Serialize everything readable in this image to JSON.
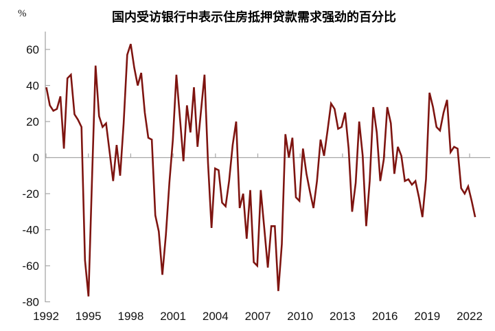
{
  "header": {
    "title": "国内受访银行中表示住房抵押贷款需求强劲的百分比",
    "y_unit_label": "%"
  },
  "chart_data": {
    "type": "line",
    "title": "国内受访银行中表示住房抵押贷款需求强劲的百分比",
    "ylabel": "%",
    "xlabel": "",
    "frequency": "quarterly",
    "start_period": "1992Q1",
    "end_period": "2022Q3",
    "grid": false,
    "legend": "none",
    "ylim": [
      -80,
      65
    ],
    "y_tick_values": [
      60,
      40,
      20,
      0,
      -20,
      -40,
      -60,
      -80
    ],
    "x_tick_labels": [
      "1992",
      "1995",
      "1998",
      "2001",
      "2004",
      "2007",
      "2010",
      "2013",
      "2016",
      "2019",
      "2022"
    ],
    "line_color": "#7E1410",
    "axis_color": "#A6A6A6",
    "label_color": "#111111",
    "values": [
      39,
      29,
      26,
      27,
      34,
      5,
      44,
      46,
      24,
      21,
      17,
      -57,
      -77,
      -11,
      51,
      23,
      17,
      19,
      3,
      -13,
      7,
      -10,
      19,
      57,
      63,
      50,
      40,
      47,
      25,
      11,
      10,
      -32,
      -41,
      -65,
      -43,
      -14,
      10,
      46,
      22,
      -2,
      29,
      14,
      39,
      6,
      26,
      46,
      -3,
      -39,
      -6,
      -7,
      -25,
      -27,
      -13,
      7,
      20,
      -28,
      -20,
      -45,
      -18,
      -58,
      -60,
      -18,
      -39,
      -61,
      -38,
      -38,
      -74,
      -48,
      13,
      0,
      11,
      -22,
      -24,
      5,
      -9,
      -19,
      -28,
      -13,
      10,
      1,
      15,
      30,
      27,
      16,
      17,
      25,
      5,
      -30,
      -14,
      20,
      1,
      -38,
      -13,
      28,
      14,
      -13,
      -1,
      28,
      19,
      -9,
      6,
      1,
      -13,
      -12,
      -15,
      -13,
      -22,
      -33,
      -12,
      36,
      28,
      17,
      15,
      25,
      32,
      3,
      6,
      5,
      -17,
      -20,
      -16,
      -24,
      -33
    ]
  }
}
